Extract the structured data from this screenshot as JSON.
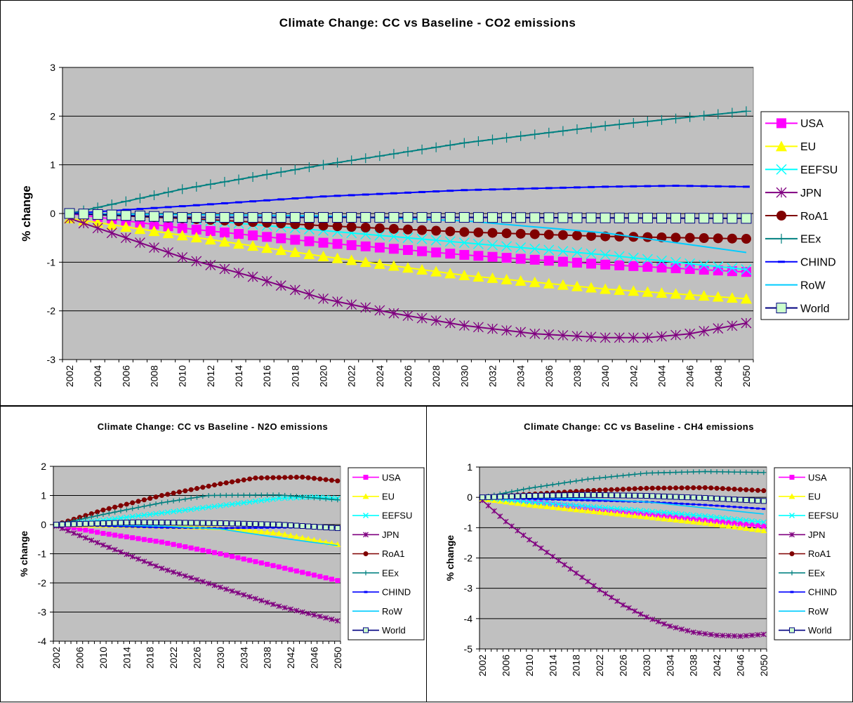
{
  "chart_data": [
    {
      "id": "co2",
      "type": "line",
      "title": "Climate Change: CC vs Baseline  -  CO2 emissions",
      "ylabel": "% change",
      "xlabel": "",
      "ylim": [
        -3,
        3
      ],
      "yticks": [
        3,
        2,
        1,
        0,
        -1,
        -2,
        -3
      ],
      "x": [
        2002,
        2003,
        2004,
        2005,
        2006,
        2007,
        2008,
        2009,
        2010,
        2011,
        2012,
        2013,
        2014,
        2015,
        2016,
        2017,
        2018,
        2019,
        2020,
        2021,
        2022,
        2023,
        2024,
        2025,
        2026,
        2027,
        2028,
        2029,
        2030,
        2031,
        2032,
        2033,
        2034,
        2035,
        2036,
        2037,
        2038,
        2039,
        2040,
        2041,
        2042,
        2043,
        2044,
        2045,
        2046,
        2047,
        2048,
        2049,
        2050
      ],
      "xtick_step": 2,
      "grid": true,
      "legend_position": "right",
      "series": [
        {
          "name": "USA",
          "color": "#ff00ff",
          "marker": "square",
          "anchors": [
            [
              2002,
              0
            ],
            [
              2010,
              -0.3
            ],
            [
              2020,
              -0.6
            ],
            [
              2030,
              -0.85
            ],
            [
              2040,
              -1.05
            ],
            [
              2050,
              -1.2
            ]
          ]
        },
        {
          "name": "EU",
          "color": "#ffff00",
          "marker": "triangle",
          "anchors": [
            [
              2002,
              -0.1
            ],
            [
              2010,
              -0.45
            ],
            [
              2020,
              -0.88
            ],
            [
              2030,
              -1.27
            ],
            [
              2040,
              -1.55
            ],
            [
              2050,
              -1.75
            ]
          ]
        },
        {
          "name": "EEFSU",
          "color": "#00ffff",
          "marker": "x",
          "anchors": [
            [
              2002,
              0
            ],
            [
              2010,
              -0.1
            ],
            [
              2020,
              -0.35
            ],
            [
              2030,
              -0.6
            ],
            [
              2040,
              -0.85
            ],
            [
              2050,
              -1.15
            ]
          ]
        },
        {
          "name": "JPN",
          "color": "#800080",
          "marker": "star",
          "anchors": [
            [
              2002,
              -0.1
            ],
            [
              2006,
              -0.5
            ],
            [
              2010,
              -0.9
            ],
            [
              2015,
              -1.3
            ],
            [
              2020,
              -1.75
            ],
            [
              2025,
              -2.05
            ],
            [
              2030,
              -2.3
            ],
            [
              2035,
              -2.47
            ],
            [
              2040,
              -2.55
            ],
            [
              2043,
              -2.55
            ],
            [
              2046,
              -2.47
            ],
            [
              2050,
              -2.25
            ]
          ]
        },
        {
          "name": "RoA1",
          "color": "#800000",
          "marker": "circle",
          "anchors": [
            [
              2002,
              0
            ],
            [
              2010,
              -0.1
            ],
            [
              2020,
              -0.25
            ],
            [
              2030,
              -0.38
            ],
            [
              2040,
              -0.47
            ],
            [
              2050,
              -0.52
            ]
          ]
        },
        {
          "name": "EEx",
          "color": "#008080",
          "marker": "plus",
          "anchors": [
            [
              2002,
              0
            ],
            [
              2010,
              0.5
            ],
            [
              2020,
              1.0
            ],
            [
              2030,
              1.45
            ],
            [
              2040,
              1.8
            ],
            [
              2050,
              2.1
            ]
          ]
        },
        {
          "name": "CHIND",
          "color": "#0000ff",
          "marker": "dash",
          "anchors": [
            [
              2002,
              0
            ],
            [
              2010,
              0.15
            ],
            [
              2020,
              0.35
            ],
            [
              2030,
              0.48
            ],
            [
              2040,
              0.55
            ],
            [
              2045,
              0.57
            ],
            [
              2050,
              0.55
            ]
          ]
        },
        {
          "name": "RoW",
          "color": "#00ccff",
          "marker": "none",
          "anchors": [
            [
              2002,
              0
            ],
            [
              2020,
              -0.05
            ],
            [
              2030,
              -0.15
            ],
            [
              2040,
              -0.4
            ],
            [
              2050,
              -0.8
            ]
          ]
        },
        {
          "name": "World",
          "color": "#000080",
          "fill": "#ccffcc",
          "marker": "hsquare",
          "anchors": [
            [
              2002,
              0
            ],
            [
              2010,
              -0.08
            ],
            [
              2030,
              -0.08
            ],
            [
              2050,
              -0.1
            ]
          ]
        }
      ]
    },
    {
      "id": "n2o",
      "type": "line",
      "title": "Climate Change: CC vs Baseline  -  N2O emissions",
      "ylabel": "% change",
      "xlabel": "",
      "ylim": [
        -4,
        2
      ],
      "yticks": [
        2,
        1,
        0,
        -1,
        -2,
        -3,
        -4
      ],
      "x": [
        2002,
        2003,
        2004,
        2005,
        2006,
        2007,
        2008,
        2009,
        2010,
        2011,
        2012,
        2013,
        2014,
        2015,
        2016,
        2017,
        2018,
        2019,
        2020,
        2021,
        2022,
        2023,
        2024,
        2025,
        2026,
        2027,
        2028,
        2029,
        2030,
        2031,
        2032,
        2033,
        2034,
        2035,
        2036,
        2037,
        2038,
        2039,
        2040,
        2041,
        2042,
        2043,
        2044,
        2045,
        2046,
        2047,
        2048,
        2049,
        2050
      ],
      "xtick_step": 4,
      "grid": true,
      "legend_position": "right",
      "series": [
        {
          "name": "USA",
          "color": "#ff00ff",
          "marker": "square",
          "anchors": [
            [
              2002,
              0
            ],
            [
              2010,
              -0.3
            ],
            [
              2020,
              -0.6
            ],
            [
              2030,
              -1.0
            ],
            [
              2040,
              -1.45
            ],
            [
              2050,
              -1.92
            ]
          ]
        },
        {
          "name": "EU",
          "color": "#ffff00",
          "marker": "triangle",
          "anchors": [
            [
              2002,
              0
            ],
            [
              2020,
              -0.05
            ],
            [
              2030,
              -0.1
            ],
            [
              2040,
              -0.3
            ],
            [
              2050,
              -0.68
            ]
          ]
        },
        {
          "name": "EEFSU",
          "color": "#00ffff",
          "marker": "x",
          "anchors": [
            [
              2002,
              0
            ],
            [
              2010,
              0.15
            ],
            [
              2020,
              0.4
            ],
            [
              2030,
              0.65
            ],
            [
              2040,
              0.9
            ],
            [
              2046,
              0.95
            ],
            [
              2050,
              0.9
            ]
          ]
        },
        {
          "name": "JPN",
          "color": "#800080",
          "marker": "star",
          "anchors": [
            [
              2002,
              -0.05
            ],
            [
              2010,
              -0.7
            ],
            [
              2020,
              -1.5
            ],
            [
              2030,
              -2.15
            ],
            [
              2040,
              -2.8
            ],
            [
              2050,
              -3.3
            ]
          ]
        },
        {
          "name": "RoA1",
          "color": "#800000",
          "marker": "circle",
          "anchors": [
            [
              2002,
              0
            ],
            [
              2010,
              0.5
            ],
            [
              2020,
              1.0
            ],
            [
              2030,
              1.4
            ],
            [
              2036,
              1.6
            ],
            [
              2044,
              1.63
            ],
            [
              2050,
              1.5
            ]
          ]
        },
        {
          "name": "EEx",
          "color": "#008080",
          "marker": "plus",
          "anchors": [
            [
              2002,
              0
            ],
            [
              2010,
              0.35
            ],
            [
              2020,
              0.75
            ],
            [
              2028,
              1.0
            ],
            [
              2040,
              1.02
            ],
            [
              2050,
              0.85
            ]
          ]
        },
        {
          "name": "CHIND",
          "color": "#0000ff",
          "marker": "dash",
          "anchors": [
            [
              2002,
              0
            ],
            [
              2020,
              -0.1
            ],
            [
              2030,
              -0.12
            ],
            [
              2040,
              -0.1
            ],
            [
              2050,
              -0.08
            ]
          ]
        },
        {
          "name": "RoW",
          "color": "#00ccff",
          "marker": "none",
          "anchors": [
            [
              2002,
              0
            ],
            [
              2020,
              -0.05
            ],
            [
              2030,
              -0.15
            ],
            [
              2040,
              -0.45
            ],
            [
              2050,
              -0.72
            ]
          ]
        },
        {
          "name": "World",
          "color": "#000080",
          "fill": "#ccffcc",
          "marker": "hsquare",
          "anchors": [
            [
              2002,
              0
            ],
            [
              2016,
              0.08
            ],
            [
              2030,
              0.05
            ],
            [
              2040,
              0
            ],
            [
              2050,
              -0.12
            ]
          ]
        }
      ]
    },
    {
      "id": "ch4",
      "type": "line",
      "title": "Climate Change: CC vs Baseline  -  CH4 emissions",
      "ylabel": "% change",
      "xlabel": "",
      "ylim": [
        -5,
        1
      ],
      "yticks": [
        1,
        0,
        -1,
        -2,
        -3,
        -4,
        -5
      ],
      "x": [
        2002,
        2003,
        2004,
        2005,
        2006,
        2007,
        2008,
        2009,
        2010,
        2011,
        2012,
        2013,
        2014,
        2015,
        2016,
        2017,
        2018,
        2019,
        2020,
        2021,
        2022,
        2023,
        2024,
        2025,
        2026,
        2027,
        2028,
        2029,
        2030,
        2031,
        2032,
        2033,
        2034,
        2035,
        2036,
        2037,
        2038,
        2039,
        2040,
        2041,
        2042,
        2043,
        2044,
        2045,
        2046,
        2047,
        2048,
        2049,
        2050
      ],
      "xtick_step": 4,
      "grid": true,
      "legend_position": "right",
      "series": [
        {
          "name": "USA",
          "color": "#ff00ff",
          "marker": "square",
          "anchors": [
            [
              2002,
              0
            ],
            [
              2010,
              -0.15
            ],
            [
              2020,
              -0.35
            ],
            [
              2030,
              -0.55
            ],
            [
              2040,
              -0.75
            ],
            [
              2050,
              -0.95
            ]
          ]
        },
        {
          "name": "EU",
          "color": "#ffff00",
          "marker": "triangle",
          "anchors": [
            [
              2002,
              -0.05
            ],
            [
              2010,
              -0.25
            ],
            [
              2020,
              -0.45
            ],
            [
              2030,
              -0.65
            ],
            [
              2040,
              -0.85
            ],
            [
              2050,
              -1.1
            ]
          ]
        },
        {
          "name": "EEFSU",
          "color": "#00ffff",
          "marker": "x",
          "anchors": [
            [
              2002,
              0
            ],
            [
              2010,
              -0.15
            ],
            [
              2020,
              -0.3
            ],
            [
              2030,
              -0.45
            ],
            [
              2040,
              -0.62
            ],
            [
              2050,
              -0.82
            ]
          ]
        },
        {
          "name": "JPN",
          "color": "#800080",
          "marker": "star",
          "anchors": [
            [
              2002,
              -0.1
            ],
            [
              2006,
              -0.8
            ],
            [
              2010,
              -1.4
            ],
            [
              2014,
              -1.95
            ],
            [
              2018,
              -2.5
            ],
            [
              2022,
              -3.05
            ],
            [
              2026,
              -3.55
            ],
            [
              2030,
              -3.95
            ],
            [
              2034,
              -4.25
            ],
            [
              2038,
              -4.45
            ],
            [
              2042,
              -4.55
            ],
            [
              2046,
              -4.58
            ],
            [
              2050,
              -4.52
            ]
          ]
        },
        {
          "name": "RoA1",
          "color": "#800000",
          "marker": "circle",
          "anchors": [
            [
              2002,
              0
            ],
            [
              2010,
              0.1
            ],
            [
              2020,
              0.22
            ],
            [
              2030,
              0.3
            ],
            [
              2040,
              0.32
            ],
            [
              2050,
              0.22
            ]
          ]
        },
        {
          "name": "EEx",
          "color": "#008080",
          "marker": "plus",
          "anchors": [
            [
              2002,
              0
            ],
            [
              2010,
              0.3
            ],
            [
              2020,
              0.6
            ],
            [
              2030,
              0.8
            ],
            [
              2040,
              0.85
            ],
            [
              2050,
              0.82
            ]
          ]
        },
        {
          "name": "CHIND",
          "color": "#0000ff",
          "marker": "dash",
          "anchors": [
            [
              2002,
              0
            ],
            [
              2010,
              -0.05
            ],
            [
              2020,
              -0.1
            ],
            [
              2030,
              -0.15
            ],
            [
              2040,
              -0.25
            ],
            [
              2050,
              -0.38
            ]
          ]
        },
        {
          "name": "RoW",
          "color": "#00ccff",
          "marker": "none",
          "anchors": [
            [
              2002,
              0
            ],
            [
              2020,
              -0.05
            ],
            [
              2030,
              -0.15
            ],
            [
              2040,
              -0.35
            ],
            [
              2050,
              -0.55
            ]
          ]
        },
        {
          "name": "World",
          "color": "#000080",
          "fill": "#ccffcc",
          "marker": "hsquare",
          "anchors": [
            [
              2002,
              0
            ],
            [
              2010,
              0.05
            ],
            [
              2020,
              0.08
            ],
            [
              2030,
              0.05
            ],
            [
              2040,
              -0.02
            ],
            [
              2050,
              -0.12
            ]
          ]
        }
      ]
    }
  ],
  "colors": {
    "plot_background": "#c0c0c0",
    "gridline": "#000000",
    "page_background": "#ffffff"
  }
}
